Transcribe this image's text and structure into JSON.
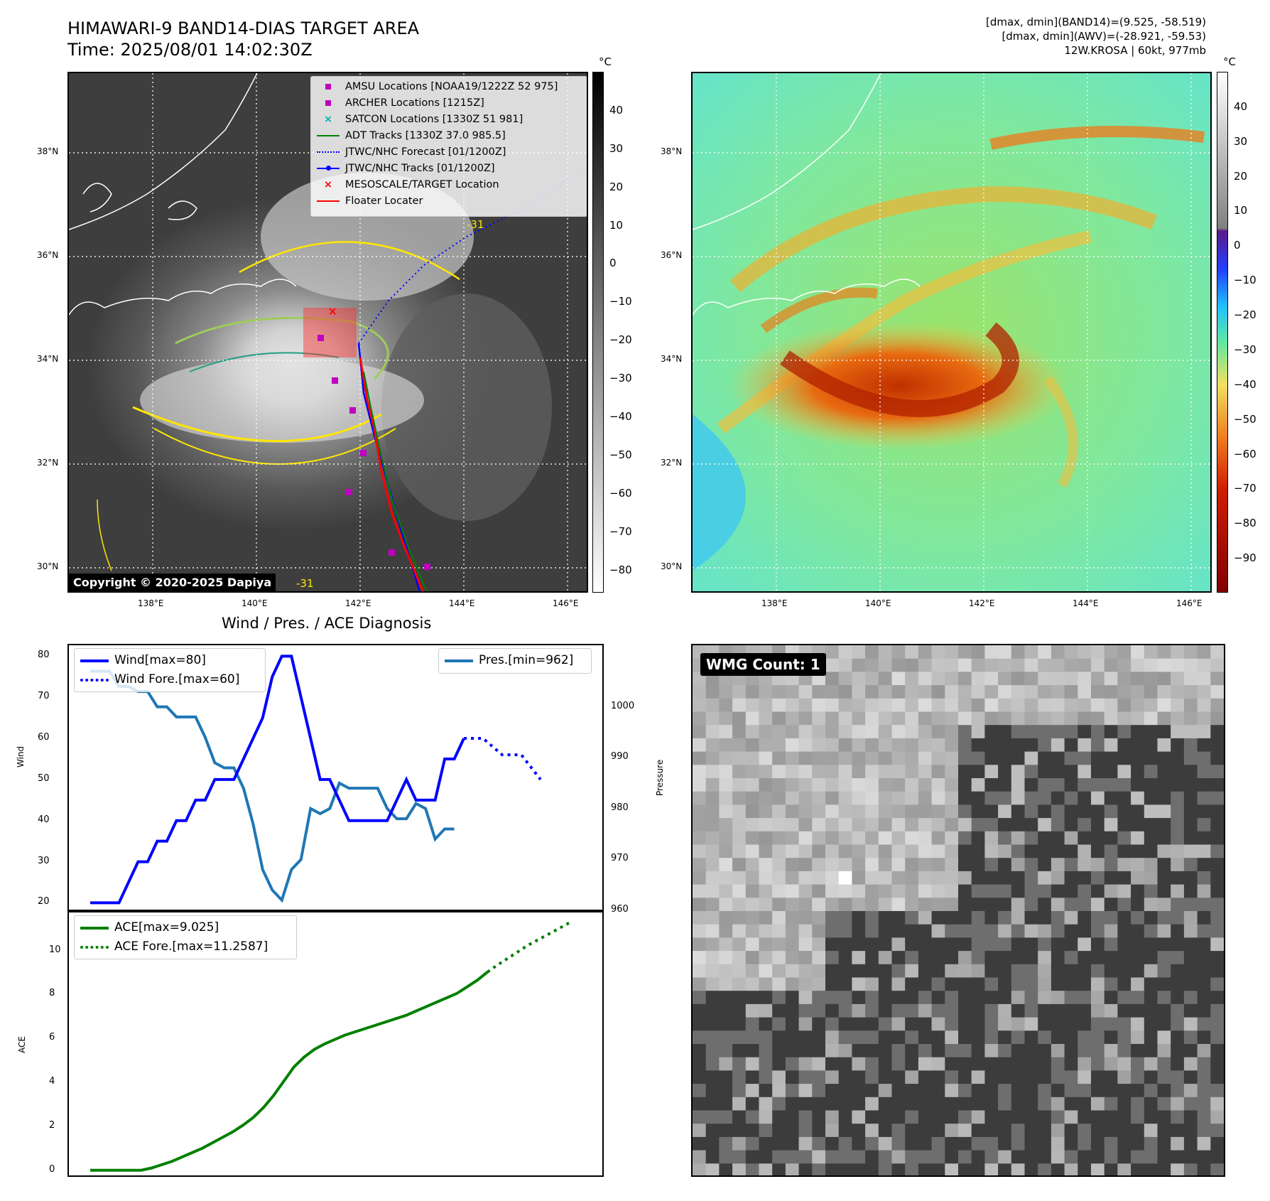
{
  "header": {
    "title_line1": "HIMAWARI-9 BAND14-DIAS TARGET AREA",
    "title_line2": "Time: 2025/08/01 14:02:30Z",
    "info_line1": "[dmax, dmin](BAND14)=(9.525, -58.519)",
    "info_line2": "[dmax, dmin](AWV)=(-28.921, -59.53)",
    "info_line3": "12W.KROSA | 60kt, 977mb"
  },
  "map": {
    "lat_ticks": [
      "38°N",
      "36°N",
      "34°N",
      "32°N",
      "30°N"
    ],
    "lon_ticks": [
      "138°E",
      "140°E",
      "142°E",
      "144°E",
      "146°E"
    ],
    "copyright": "Copyright © 2020-2025 Dapiya",
    "contour_label": "-31",
    "legend": [
      {
        "label": "AMSU Locations [NOAA19/1222Z 52 975]",
        "marker": "square",
        "color": "#c000c0"
      },
      {
        "label": "ARCHER Locations [1215Z]",
        "marker": "square",
        "color": "#c000c0"
      },
      {
        "label": "SATCON Locations [1330Z 51 981]",
        "marker": "x",
        "color": "#00b0b0"
      },
      {
        "label": "ADT Tracks [1330Z 37.0 985.5]",
        "marker": "line",
        "color": "#008000"
      },
      {
        "label": "JTWC/NHC Forecast [01/1200Z]",
        "marker": "dotted",
        "color": "#0000ff"
      },
      {
        "label": "JTWC/NHC Tracks [01/1200Z]",
        "marker": "line-dot",
        "color": "#0000ff"
      },
      {
        "label": "MESOSCALE/TARGET Location",
        "marker": "x",
        "color": "#ff0000"
      },
      {
        "label": "Floater Locater",
        "marker": "line",
        "color": "#ff0000"
      }
    ]
  },
  "colorbar_ir": {
    "unit": "°C",
    "ticks": [
      "40",
      "30",
      "20",
      "10",
      "0",
      "−10",
      "−20",
      "−30",
      "−40",
      "−50",
      "−60",
      "−70",
      "−80"
    ]
  },
  "colorbar_awv": {
    "unit": "°C",
    "ticks": [
      "40",
      "30",
      "20",
      "10",
      "0",
      "−10",
      "−20",
      "−30",
      "−40",
      "−50",
      "−60",
      "−70",
      "−80",
      "−90"
    ]
  },
  "wmg": {
    "label": "WMG Count: 1"
  },
  "chart_data": [
    {
      "type": "line",
      "title": "Wind / Pres. / ACE Diagnosis",
      "ylabel": "Wind",
      "ylabel_right": "Pressure",
      "ylim": [
        18,
        83
      ],
      "ylim_right": [
        960,
        1010
      ],
      "yticks": [
        "80",
        "70",
        "60",
        "50",
        "40",
        "30",
        "20"
      ],
      "yticks_right": [
        "1000",
        "990",
        "980",
        "970",
        "960"
      ],
      "legend_left": [
        "Wind[max=80]",
        "Wind Fore.[max=60]"
      ],
      "legend_right": [
        "Pres.[min=962]"
      ],
      "colors": {
        "wind": "#0000ff",
        "pres": "#1f77b4"
      },
      "series": [
        {
          "name": "Wind[max=80]",
          "values": [
            20,
            20,
            20,
            20,
            25,
            30,
            30,
            35,
            35,
            40,
            40,
            45,
            45,
            50,
            50,
            50,
            55,
            60,
            65,
            75,
            80,
            80,
            70,
            60,
            50,
            50,
            45,
            40,
            40,
            40,
            40,
            40,
            45,
            50,
            45,
            45,
            45,
            55,
            55,
            60
          ]
        },
        {
          "name": "Wind Fore.[max=60]",
          "offset": 39,
          "values": [
            60,
            60,
            60,
            58,
            56,
            56,
            56,
            53,
            50
          ]
        },
        {
          "name": "Pres.[min=962]",
          "axis": "right",
          "values": [
            1007,
            1007,
            1007,
            1004,
            1004,
            1003,
            1003,
            1000,
            1000,
            998,
            998,
            998,
            994,
            989,
            988,
            988,
            984,
            977,
            968,
            964,
            962,
            968,
            970,
            980,
            979,
            980,
            985,
            984,
            984,
            984,
            984,
            980,
            978,
            978,
            981,
            980,
            974,
            976,
            976
          ]
        }
      ]
    },
    {
      "type": "line",
      "ylabel": "ACE",
      "ylim": [
        -0.3,
        11.8
      ],
      "yticks": [
        "10",
        "8",
        "6",
        "4",
        "2",
        "0"
      ],
      "legend": [
        "ACE[max=9.025]",
        "ACE Fore.[max=11.2587]"
      ],
      "color": "#008000",
      "series": [
        {
          "name": "ACE[max=9.025]",
          "values": [
            0,
            0,
            0,
            0,
            0,
            0,
            0.1,
            0.25,
            0.4,
            0.6,
            0.8,
            1.0,
            1.25,
            1.5,
            1.75,
            2.05,
            2.4,
            2.85,
            3.4,
            4.05,
            4.7,
            5.15,
            5.5,
            5.75,
            5.95,
            6.15,
            6.3,
            6.45,
            6.6,
            6.75,
            6.9,
            7.05,
            7.25,
            7.45,
            7.65,
            7.85,
            8.05,
            8.35,
            8.65,
            9.025
          ]
        },
        {
          "name": "ACE Fore.[max=11.2587]",
          "offset": 39,
          "values": [
            9.025,
            9.35,
            9.65,
            9.95,
            10.25,
            10.5,
            10.75,
            11.0,
            11.2587
          ]
        }
      ]
    }
  ]
}
